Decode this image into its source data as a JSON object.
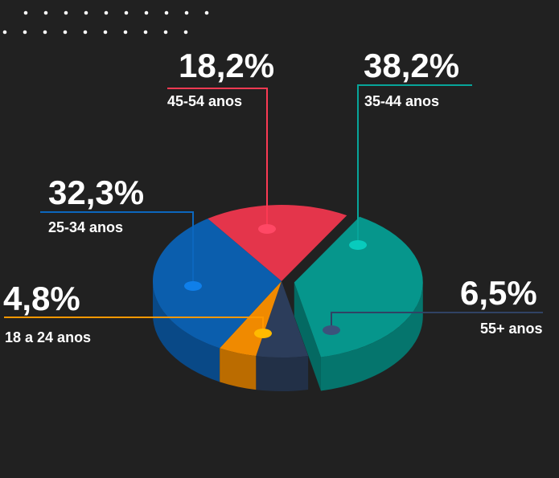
{
  "chart_data": {
    "type": "pie",
    "categories": [
      "45-54 anos",
      "35-44 anos",
      "55+ anos",
      "18 a 24 anos",
      "25-34 anos"
    ],
    "values": [
      18.2,
      38.2,
      6.5,
      4.8,
      32.3
    ],
    "value_labels": [
      "18,2%",
      "38,2%",
      "6,5%",
      "4,8%",
      "32,3%"
    ],
    "colors": [
      "#e4354b",
      "#06968c",
      "#2c3d5b",
      "#f08a00",
      "#0b5ead"
    ]
  }
}
